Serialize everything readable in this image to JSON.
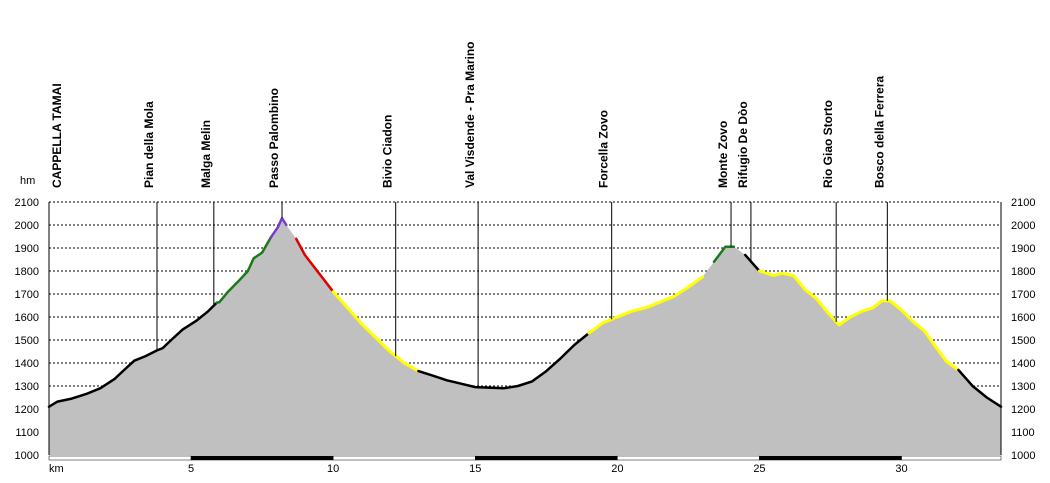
{
  "chart_data": {
    "type": "area",
    "xlabel": "km",
    "ylabel": "hm",
    "xlim": [
      0,
      33.5
    ],
    "ylim": [
      1000,
      2100
    ],
    "x_ticks": [
      5,
      10,
      15,
      20,
      25,
      30
    ],
    "y_ticks": [
      1000,
      1100,
      1200,
      1300,
      1400,
      1500,
      1600,
      1700,
      1800,
      1900,
      2000,
      2100
    ],
    "grid": true,
    "colors": {
      "fill": "#c0c0c0",
      "black": "#000000",
      "green": "#1a7a1a",
      "red": "#e00000",
      "yellow": "#ffff00",
      "purple": "#7a3ad0"
    },
    "profile": [
      [
        0,
        1210
      ],
      [
        0.3,
        1232
      ],
      [
        0.8,
        1245
      ],
      [
        1.3,
        1265
      ],
      [
        1.8,
        1290
      ],
      [
        2.3,
        1330
      ],
      [
        2.6,
        1365
      ],
      [
        3.0,
        1410
      ],
      [
        3.4,
        1430
      ],
      [
        3.8,
        1455
      ],
      [
        4.0,
        1465
      ],
      [
        4.3,
        1500
      ],
      [
        4.7,
        1545
      ],
      [
        5.2,
        1585
      ],
      [
        5.6,
        1625
      ],
      [
        5.9,
        1662
      ],
      [
        6.0,
        1665
      ],
      [
        6.3,
        1710
      ],
      [
        6.7,
        1760
      ],
      [
        7.0,
        1800
      ],
      [
        7.2,
        1855
      ],
      [
        7.5,
        1880
      ],
      [
        7.8,
        1945
      ],
      [
        8.05,
        1990
      ],
      [
        8.2,
        2030
      ],
      [
        8.35,
        2000
      ],
      [
        8.7,
        1940
      ],
      [
        9.0,
        1870
      ],
      [
        9.5,
        1790
      ],
      [
        10.0,
        1710
      ],
      [
        10.5,
        1640
      ],
      [
        11.0,
        1570
      ],
      [
        11.5,
        1510
      ],
      [
        12.0,
        1450
      ],
      [
        12.5,
        1400
      ],
      [
        13.0,
        1365
      ],
      [
        13.5,
        1345
      ],
      [
        14.0,
        1325
      ],
      [
        14.5,
        1310
      ],
      [
        15.0,
        1295
      ],
      [
        16.0,
        1290
      ],
      [
        16.5,
        1300
      ],
      [
        17.0,
        1320
      ],
      [
        17.5,
        1365
      ],
      [
        18.0,
        1420
      ],
      [
        18.5,
        1480
      ],
      [
        19.0,
        1530
      ],
      [
        19.5,
        1575
      ],
      [
        20.0,
        1600
      ],
      [
        20.5,
        1625
      ],
      [
        21.0,
        1640
      ],
      [
        21.5,
        1665
      ],
      [
        22.0,
        1690
      ],
      [
        22.5,
        1730
      ],
      [
        23.0,
        1775
      ],
      [
        23.4,
        1840
      ],
      [
        23.8,
        1905
      ],
      [
        24.1,
        1905
      ],
      [
        24.5,
        1870
      ],
      [
        25.0,
        1800
      ],
      [
        25.5,
        1780
      ],
      [
        25.8,
        1790
      ],
      [
        26.2,
        1780
      ],
      [
        26.6,
        1720
      ],
      [
        27.0,
        1680
      ],
      [
        27.4,
        1620
      ],
      [
        27.8,
        1565
      ],
      [
        28.2,
        1600
      ],
      [
        28.6,
        1625
      ],
      [
        29.0,
        1640
      ],
      [
        29.3,
        1670
      ],
      [
        29.6,
        1670
      ],
      [
        30.0,
        1630
      ],
      [
        30.4,
        1580
      ],
      [
        30.8,
        1540
      ],
      [
        31.2,
        1470
      ],
      [
        31.6,
        1405
      ],
      [
        32.0,
        1370
      ],
      [
        32.5,
        1300
      ],
      [
        33.0,
        1250
      ],
      [
        33.5,
        1210
      ]
    ],
    "segments": [
      {
        "from": 0,
        "to": 5.9,
        "color": "black"
      },
      {
        "from": 5.9,
        "to": 7.8,
        "color": "green"
      },
      {
        "from": 7.8,
        "to": 8.5,
        "color": "purple"
      },
      {
        "from": 8.5,
        "to": 10.0,
        "color": "red"
      },
      {
        "from": 10.0,
        "to": 13.0,
        "color": "yellow"
      },
      {
        "from": 13.0,
        "to": 19.0,
        "color": "black"
      },
      {
        "from": 19.0,
        "to": 23.2,
        "color": "yellow"
      },
      {
        "from": 23.2,
        "to": 24.3,
        "color": "green"
      },
      {
        "from": 24.3,
        "to": 25.0,
        "color": "black"
      },
      {
        "from": 25.0,
        "to": 32.0,
        "color": "yellow"
      },
      {
        "from": 32.0,
        "to": 33.5,
        "color": "black"
      }
    ],
    "waypoints": [
      {
        "label": "CAPPELLA TAMAI",
        "km": 0
      },
      {
        "label": "Pian della Mola",
        "km": 3.8
      },
      {
        "label": "Malga Melin",
        "km": 5.8
      },
      {
        "label": "Passo Palombino",
        "km": 8.2
      },
      {
        "label": "Bivio Ciadon",
        "km": 12.2
      },
      {
        "label": "Val Visdende - Pra Marino",
        "km": 15.1
      },
      {
        "label": "Forcella Zovo",
        "km": 19.8
      },
      {
        "label": "Monte Zovo",
        "km": 24.0
      },
      {
        "label": "Rifugio De Dòo",
        "km": 24.7
      },
      {
        "label": "Rio Giao Storto",
        "km": 27.7
      },
      {
        "label": "Bosco della Ferrera",
        "km": 29.5
      }
    ]
  }
}
